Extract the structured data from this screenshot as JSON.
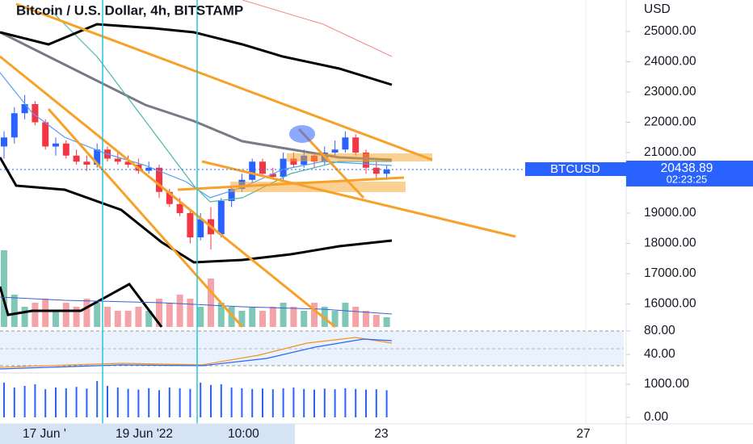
{
  "header": {
    "title": "Bitcoin / U.S. Dollar, 4h, BITSTAMP",
    "currency": "USD"
  },
  "price_axis": {
    "ticks": [
      {
        "value": 25000,
        "label": "25000.00"
      },
      {
        "value": 24000,
        "label": "24000.00"
      },
      {
        "value": 23000,
        "label": "23000.00"
      },
      {
        "value": 22000,
        "label": "22000.00"
      },
      {
        "value": 21000,
        "label": "21000.00"
      },
      {
        "value": 19000,
        "label": "19000.00"
      },
      {
        "value": 18000,
        "label": "18000.00"
      },
      {
        "value": 17000,
        "label": "17000.00"
      },
      {
        "value": 16000,
        "label": "16000.00"
      }
    ]
  },
  "last_price": {
    "symbol": "BTCUSD",
    "value": {
      "value": 20438.89,
      "label": "20438.89"
    },
    "countdown": "02:23:25"
  },
  "oscillator_axis": {
    "ticks": [
      {
        "value": 80,
        "label": "80.00"
      },
      {
        "value": 40,
        "label": "40.00"
      }
    ]
  },
  "histogram_axis": {
    "ticks": [
      {
        "value": 1000,
        "label": "1000.00"
      },
      {
        "value": 0,
        "label": "0.00"
      }
    ]
  },
  "time_axis": {
    "labels": [
      "17 Jun '",
      "19 Jun '22",
      "10:00",
      "23",
      "27"
    ]
  },
  "candles": [
    [
      21200,
      21700,
      20800,
      21500
    ],
    [
      21500,
      22500,
      21300,
      22300
    ],
    [
      22300,
      22900,
      22100,
      22600
    ],
    [
      22600,
      22700,
      21900,
      22000
    ],
    [
      22000,
      22100,
      21100,
      21200
    ],
    [
      21200,
      21500,
      20900,
      21300
    ],
    [
      21300,
      21400,
      20800,
      20900
    ],
    [
      20900,
      21100,
      20600,
      20700
    ],
    [
      20700,
      20900,
      20400,
      20600
    ],
    [
      20600,
      21300,
      20500,
      21100
    ],
    [
      21100,
      21200,
      20700,
      20800
    ],
    [
      20800,
      21000,
      20600,
      20700
    ],
    [
      20700,
      20900,
      20500,
      20600
    ],
    [
      20600,
      20800,
      20300,
      20400
    ],
    [
      20400,
      20700,
      20300,
      20500
    ],
    [
      20500,
      20600,
      19500,
      19700
    ],
    [
      19700,
      19800,
      19200,
      19300
    ],
    [
      19300,
      19500,
      18900,
      19000
    ],
    [
      19000,
      19100,
      18000,
      18200
    ],
    [
      18200,
      19000,
      18100,
      18800
    ],
    [
      18800,
      19200,
      17800,
      18300
    ],
    [
      18300,
      19500,
      18200,
      19400
    ],
    [
      19400,
      19900,
      19200,
      19800
    ],
    [
      19800,
      20300,
      19700,
      20100
    ],
    [
      20100,
      20800,
      20000,
      20700
    ],
    [
      20700,
      20800,
      20200,
      20300
    ],
    [
      20300,
      20500,
      20100,
      20200
    ],
    [
      20200,
      21000,
      20100,
      20800
    ],
    [
      20800,
      21000,
      20500,
      20600
    ],
    [
      20600,
      21100,
      20500,
      20900
    ],
    [
      20900,
      21000,
      20500,
      20700
    ],
    [
      20700,
      21200,
      20600,
      21000
    ],
    [
      21000,
      21400,
      20900,
      21100
    ],
    [
      21100,
      21700,
      21000,
      21500
    ],
    [
      21500,
      21600,
      20900,
      21000
    ],
    [
      21000,
      21100,
      20300,
      20500
    ],
    [
      20500,
      20800,
      20100,
      20300
    ],
    [
      20300,
      20600,
      20100,
      20438.89
    ]
  ],
  "volume": [
    95,
    40,
    25,
    30,
    35,
    20,
    30,
    25,
    35,
    30,
    25,
    20,
    20,
    25,
    20,
    35,
    30,
    40,
    35,
    25,
    60,
    30,
    25,
    20,
    25,
    20,
    25,
    30,
    25,
    20,
    30,
    25,
    20,
    30,
    25,
    20,
    15,
    12
  ],
  "histogram": [
    1050,
    900,
    950,
    1000,
    850,
    900,
    880,
    920,
    870,
    1100,
    950,
    900,
    860,
    840,
    880,
    820,
    900,
    880,
    860,
    1050,
    980,
    1000,
    900,
    880,
    860,
    870,
    850,
    880,
    900,
    860,
    840,
    870,
    850,
    880,
    860,
    840,
    850,
    820
  ]
}
